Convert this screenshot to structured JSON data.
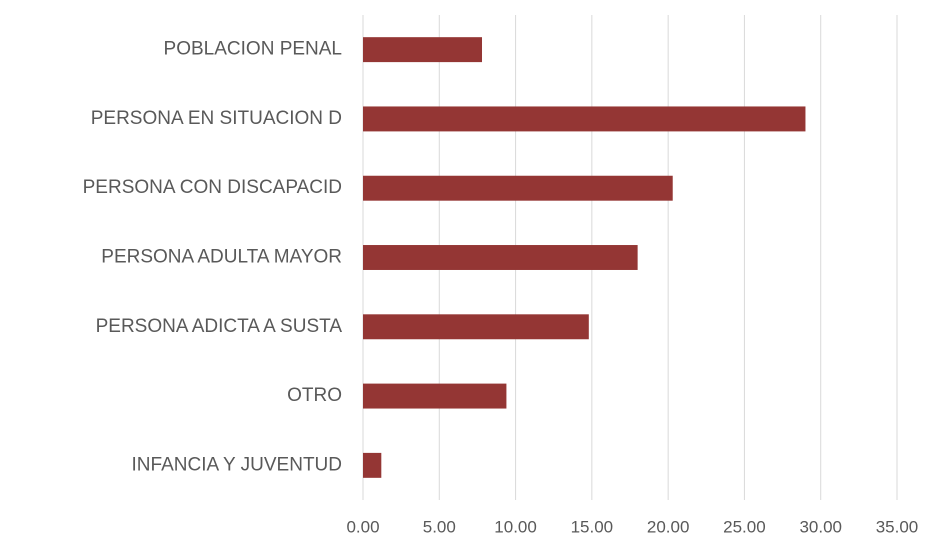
{
  "chart_data": {
    "type": "bar",
    "orientation": "horizontal",
    "categories": [
      "POBLACION PENAL",
      "PERSONA EN SITUACION D",
      "PERSONA CON DISCAPACID",
      "PERSONA ADULTA MAYOR",
      "PERSONA ADICTA A SUSTA",
      "OTRO",
      "INFANCIA Y JUVENTUD"
    ],
    "values": [
      7.8,
      29.0,
      20.3,
      18.0,
      14.8,
      9.4,
      1.2
    ],
    "color": "#943634",
    "xlim": [
      0,
      35
    ],
    "xticks": [
      {
        "value": 0,
        "label": "0.00"
      },
      {
        "value": 5,
        "label": "5.00"
      },
      {
        "value": 10,
        "label": "10.00"
      },
      {
        "value": 15,
        "label": "15.00"
      },
      {
        "value": 20,
        "label": "20.00"
      },
      {
        "value": 25,
        "label": "25.00"
      },
      {
        "value": 30,
        "label": "30.00"
      },
      {
        "value": 35,
        "label": "35.00"
      }
    ],
    "grid": true
  }
}
